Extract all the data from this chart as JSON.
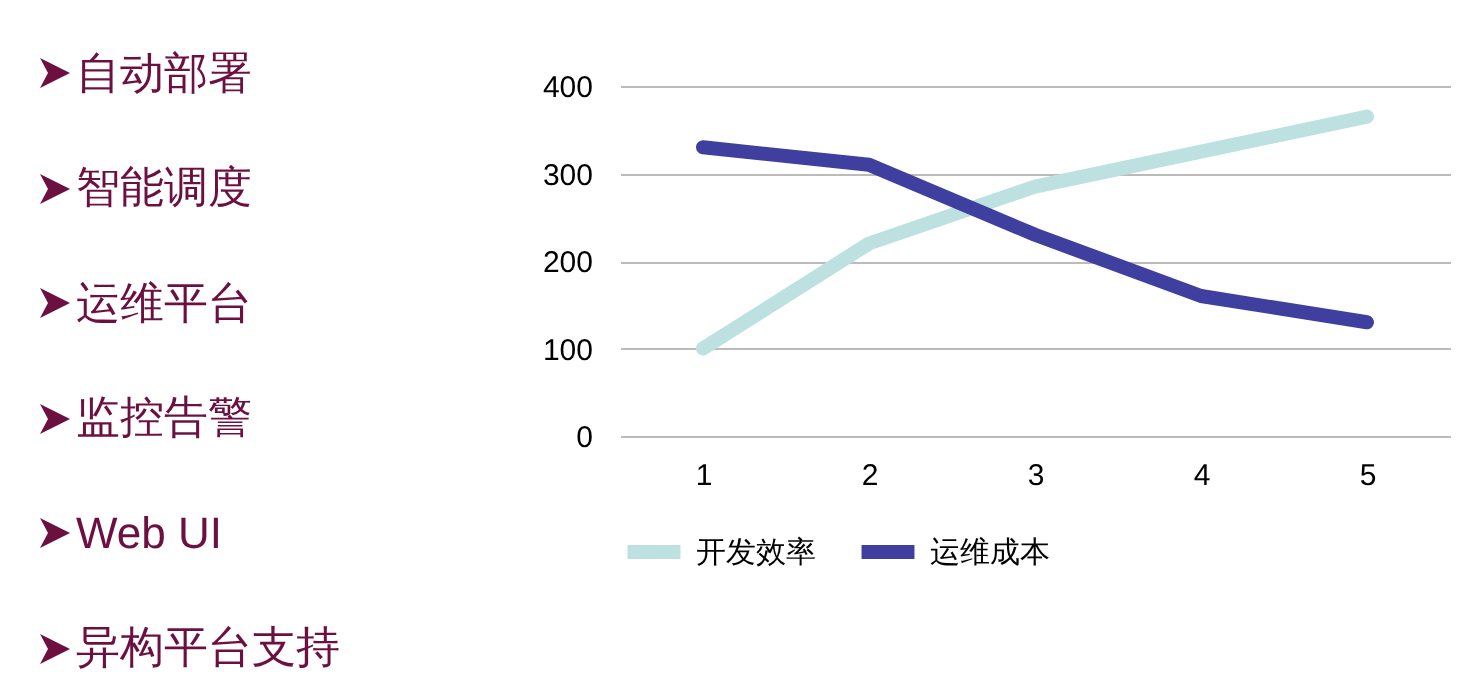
{
  "chart_data": [
    {
      "type": "other",
      "annotations": [
        "自动部署",
        "智能调度",
        "运维平台",
        "监控告警",
        "Web UI",
        "异构平台支持"
      ]
    },
    {
      "type": "line",
      "categories": [
        "1",
        "2",
        "3",
        "4",
        "5"
      ],
      "series": [
        {
          "name": "开发效率",
          "color": "#bde0e0",
          "values": [
            100,
            220,
            285,
            325,
            365
          ]
        },
        {
          "name": "运维成本",
          "color": "#3f3f9f",
          "values": [
            330,
            310,
            230,
            160,
            130
          ]
        }
      ],
      "ylim": [
        0,
        400
      ],
      "yticks": [
        0,
        100,
        200,
        300,
        400
      ],
      "grid": "y",
      "legend": "bottom"
    }
  ]
}
